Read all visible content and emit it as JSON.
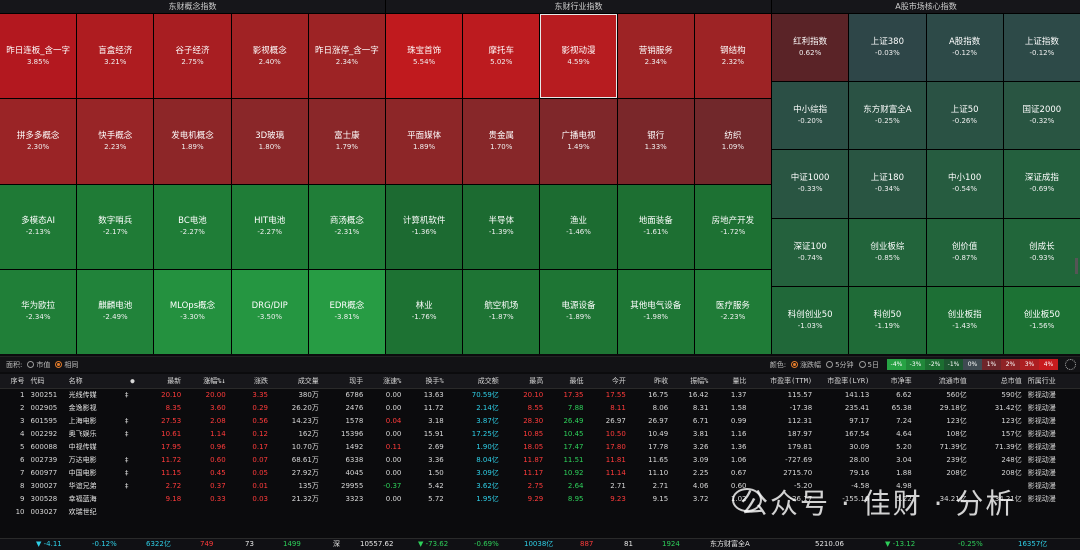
{
  "heatmap": {
    "concept": {
      "title": "东财概念指数",
      "tiles": [
        {
          "name": "昨日连板_含一字",
          "pct": "3.85%",
          "color": "#b3181f"
        },
        {
          "name": "盲盒经济",
          "pct": "3.21%",
          "color": "#ae1c20"
        },
        {
          "name": "谷子经济",
          "pct": "2.75%",
          "color": "#a81e22"
        },
        {
          "name": "影视概念",
          "pct": "2.40%",
          "color": "#a02224"
        },
        {
          "name": "昨日涨停_含一字",
          "pct": "2.34%",
          "color": "#9d2325"
        },
        {
          "name": "拼多多概念",
          "pct": "2.30%",
          "color": "#9a2426"
        },
        {
          "name": "快手概念",
          "pct": "2.23%",
          "color": "#982527"
        },
        {
          "name": "发电机概念",
          "pct": "1.89%",
          "color": "#8d2628"
        },
        {
          "name": "3D玻璃",
          "pct": "1.80%",
          "color": "#8a2729"
        },
        {
          "name": "富士康",
          "pct": "1.79%",
          "color": "#8a2729"
        },
        {
          "name": "多模态AI",
          "pct": "-2.13%",
          "color": "#1f7a36"
        },
        {
          "name": "数字哨兵",
          "pct": "-2.17%",
          "color": "#1f7b36"
        },
        {
          "name": "BC电池",
          "pct": "-2.27%",
          "color": "#1f7d37"
        },
        {
          "name": "HIT电池",
          "pct": "-2.27%",
          "color": "#1f7d37"
        },
        {
          "name": "商汤概念",
          "pct": "-2.31%",
          "color": "#207e38"
        },
        {
          "name": "华为欧拉",
          "pct": "-2.34%",
          "color": "#207f38"
        },
        {
          "name": "麒麟电池",
          "pct": "-2.49%",
          "color": "#21833a"
        },
        {
          "name": "MLOps概念",
          "pct": "-3.30%",
          "color": "#24913f"
        },
        {
          "name": "DRG/DIP",
          "pct": "-3.50%",
          "color": "#259641"
        },
        {
          "name": "EDR概念",
          "pct": "-3.81%",
          "color": "#279c44"
        }
      ]
    },
    "industry": {
      "title": "东财行业指数",
      "selected_index": 2,
      "tiles": [
        {
          "name": "珠宝首饰",
          "pct": "5.54%",
          "color": "#c01a1e"
        },
        {
          "name": "摩托车",
          "pct": "5.02%",
          "color": "#bc1b1f"
        },
        {
          "name": "影视动漫",
          "pct": "4.59%",
          "color": "#b71c20"
        },
        {
          "name": "营销服务",
          "pct": "2.34%",
          "color": "#9d2325"
        },
        {
          "name": "钢结构",
          "pct": "2.32%",
          "color": "#9d2325"
        },
        {
          "name": "平面媒体",
          "pct": "1.89%",
          "color": "#8d2628"
        },
        {
          "name": "贵金属",
          "pct": "1.70%",
          "color": "#872729"
        },
        {
          "name": "广播电视",
          "pct": "1.49%",
          "color": "#7f272a"
        },
        {
          "name": "银行",
          "pct": "1.33%",
          "color": "#7a272a"
        },
        {
          "name": "纺织",
          "pct": "1.09%",
          "color": "#71282b"
        },
        {
          "name": "计算机软件",
          "pct": "-1.36%",
          "color": "#1c6a31"
        },
        {
          "name": "半导体",
          "pct": "-1.39%",
          "color": "#1c6b31"
        },
        {
          "name": "渔业",
          "pct": "-1.46%",
          "color": "#1c6c31"
        },
        {
          "name": "地面装备",
          "pct": "-1.61%",
          "color": "#1d6f32"
        },
        {
          "name": "房地产开发",
          "pct": "-1.72%",
          "color": "#1d7133"
        },
        {
          "name": "林业",
          "pct": "-1.76%",
          "color": "#1d7233"
        },
        {
          "name": "航空机场",
          "pct": "-1.87%",
          "color": "#1e7434"
        },
        {
          "name": "电源设备",
          "pct": "-1.89%",
          "color": "#1e7534"
        },
        {
          "name": "其他电气设备",
          "pct": "-1.98%",
          "color": "#1e7735"
        },
        {
          "name": "医疗服务",
          "pct": "-2.23%",
          "color": "#1f7c37"
        }
      ]
    },
    "core": {
      "title": "A股市场核心指数",
      "tiles": [
        {
          "name": "红利指数",
          "pct": "0.62%",
          "color": "#5a2327"
        },
        {
          "name": "上证380",
          "pct": "-0.03%",
          "color": "#2e4648"
        },
        {
          "name": "A股指数",
          "pct": "-0.12%",
          "color": "#2d4a48"
        },
        {
          "name": "上证指数",
          "pct": "-0.12%",
          "color": "#2d4a48"
        },
        {
          "name": "中小综指",
          "pct": "-0.20%",
          "color": "#2b4f45"
        },
        {
          "name": "东方财富全A",
          "pct": "-0.25%",
          "color": "#2a5244"
        },
        {
          "name": "上证50",
          "pct": "-0.26%",
          "color": "#2a5244"
        },
        {
          "name": "国证2000",
          "pct": "-0.32%",
          "color": "#295542"
        },
        {
          "name": "中证1000",
          "pct": "-0.33%",
          "color": "#295542"
        },
        {
          "name": "上证180",
          "pct": "-0.34%",
          "color": "#295542"
        },
        {
          "name": "中小100",
          "pct": "-0.54%",
          "color": "#265c40"
        },
        {
          "name": "深证成指",
          "pct": "-0.69%",
          "color": "#24603e"
        },
        {
          "name": "深证100",
          "pct": "-0.74%",
          "color": "#24613d"
        },
        {
          "name": "创业板综",
          "pct": "-0.85%",
          "color": "#22643b"
        },
        {
          "name": "创价值",
          "pct": "-0.87%",
          "color": "#22643b"
        },
        {
          "name": "创成长",
          "pct": "-0.93%",
          "color": "#21663a"
        },
        {
          "name": "科创创业50",
          "pct": "-1.03%",
          "color": "#206839"
        },
        {
          "name": "科创50",
          "pct": "-1.19%",
          "color": "#1f6b37"
        },
        {
          "name": "创业板指",
          "pct": "-1.43%",
          "color": "#1d6f35"
        },
        {
          "name": "创业板50",
          "pct": "-1.56%",
          "color": "#1c7234"
        }
      ]
    }
  },
  "controls": {
    "area_label": "面积:",
    "area_opt1": "市值",
    "area_opt2": "相同",
    "color_label": "颜色:",
    "color_opt1": "涨跌幅",
    "color_opt2": "5分钟",
    "color_opt3": "5日",
    "legend": [
      {
        "label": "-4%",
        "color": "#27a244"
      },
      {
        "label": "-3%",
        "color": "#21883a"
      },
      {
        "label": "-2%",
        "color": "#1c6e31"
      },
      {
        "label": "-1%",
        "color": "#1d5530"
      },
      {
        "label": "0%",
        "color": "#3f4a52"
      },
      {
        "label": "1%",
        "color": "#6e252a"
      },
      {
        "label": "2%",
        "color": "#8f2326"
      },
      {
        "label": "3%",
        "color": "#ad1f22"
      },
      {
        "label": "4%",
        "color": "#c81b1e"
      }
    ]
  },
  "table": {
    "columns": [
      "序号",
      "代码",
      "名称",
      "●",
      "最新",
      "涨幅%↓",
      "涨跌",
      "成交量",
      "现手",
      "涨速%",
      "换手%",
      "成交额",
      "最高",
      "最低",
      "今开",
      "昨收",
      "振幅%",
      "量比",
      "市盈率(TTM)",
      "市盈率(LYR)",
      "市净率",
      "流通市值",
      "总市值",
      "所属行业"
    ],
    "rows": [
      [
        "1",
        "300251",
        "光线传媒",
        "‡",
        "20.10",
        "20.00",
        "3.35",
        "380万",
        "6786",
        "0.00",
        "13.63",
        "70.59亿",
        "20.10",
        "17.35",
        "17.55",
        "16.75",
        "16.42",
        "1.37",
        "115.57",
        "141.13",
        "6.62",
        "560亿",
        "590亿",
        "影视动漫"
      ],
      [
        "2",
        "002905",
        "金逸影视",
        "",
        "8.35",
        "3.60",
        "0.29",
        "26.20万",
        "2476",
        "0.00",
        "11.72",
        "2.14亿",
        "8.55",
        "7.88",
        "8.11",
        "8.06",
        "8.31",
        "1.58",
        "-17.38",
        "235.41",
        "65.38",
        "29.18亿",
        "31.42亿",
        "影视动漫"
      ],
      [
        "3",
        "601595",
        "上海电影",
        "‡",
        "27.53",
        "2.08",
        "0.56",
        "14.23万",
        "1578",
        "0.04",
        "3.18",
        "3.87亿",
        "28.30",
        "26.49",
        "26.97",
        "26.97",
        "6.71",
        "0.99",
        "112.31",
        "97.17",
        "7.24",
        "123亿",
        "123亿",
        "影视动漫"
      ],
      [
        "4",
        "002292",
        "奥飞娱乐",
        "‡",
        "10.61",
        "1.14",
        "0.12",
        "162万",
        "15396",
        "0.00",
        "15.91",
        "17.25亿",
        "10.85",
        "10.45",
        "10.50",
        "10.49",
        "3.81",
        "1.16",
        "187.97",
        "167.54",
        "4.64",
        "108亿",
        "157亿",
        "影视动漫"
      ],
      [
        "5",
        "600088",
        "中视传媒",
        "",
        "17.95",
        "0.96",
        "0.17",
        "10.70万",
        "1492",
        "0.11",
        "2.69",
        "1.90亿",
        "18.05",
        "17.47",
        "17.80",
        "17.78",
        "3.26",
        "1.36",
        "179.81",
        "30.09",
        "5.20",
        "71.39亿",
        "71.39亿",
        "影视动漫"
      ],
      [
        "6",
        "002739",
        "万达电影",
        "‡",
        "11.72",
        "0.60",
        "0.07",
        "68.61万",
        "6338",
        "0.00",
        "3.36",
        "8.04亿",
        "11.87",
        "11.51",
        "11.81",
        "11.65",
        "3.09",
        "1.06",
        "-727.69",
        "28.00",
        "3.04",
        "239亿",
        "248亿",
        "影视动漫"
      ],
      [
        "7",
        "600977",
        "中国电影",
        "‡",
        "11.15",
        "0.45",
        "0.05",
        "27.92万",
        "4045",
        "0.00",
        "1.50",
        "3.09亿",
        "11.17",
        "10.92",
        "11.14",
        "11.10",
        "2.25",
        "0.67",
        "2715.70",
        "79.16",
        "1.88",
        "208亿",
        "208亿",
        "影视动漫"
      ],
      [
        "8",
        "300027",
        "华谊兄弟",
        "‡",
        "2.72",
        "0.37",
        "0.01",
        "135万",
        "29955",
        "-0.37",
        "5.42",
        "3.62亿",
        "2.75",
        "2.64",
        "2.71",
        "2.71",
        "4.06",
        "0.60",
        "-5.20",
        "-4.58",
        "4.98",
        "",
        "",
        "影视动漫"
      ],
      [
        "9",
        "300528",
        "幸福蓝海",
        "",
        "9.18",
        "0.33",
        "0.03",
        "21.32万",
        "3323",
        "0.00",
        "5.72",
        "1.95亿",
        "9.29",
        "8.95",
        "9.23",
        "9.15",
        "3.72",
        "1.02",
        "-26.17",
        "-155.16",
        "5.22",
        "34.21亿",
        "34.21亿",
        "影视动漫"
      ],
      [
        "10",
        "003027",
        "欢瑞世纪",
        "",
        "",
        "",
        "",
        "",
        "",
        "",
        "",
        "",
        "",
        "",
        "",
        "",
        "",
        "",
        "",
        "",
        "",
        "",
        "",
        ""
      ]
    ]
  },
  "status": {
    "v1": "▼ -4.11",
    "v2": "-0.12%",
    "v3": "6322亿",
    "v4": "749",
    "v5": "73",
    "v6": "1499",
    "v7": "深",
    "v8": "10557.62",
    "v9": "▼ -73.62",
    "v10": "-0.69%",
    "v11": "10038亿",
    "v12": "887",
    "v13": "81",
    "v14": "1924",
    "v15": "东方财富全A",
    "v16": "5210.06",
    "v17": "▼ -13.12",
    "v18": "-0.25%",
    "v19": "16357亿"
  },
  "watermark": "公众号 · 佳财 · 分析"
}
